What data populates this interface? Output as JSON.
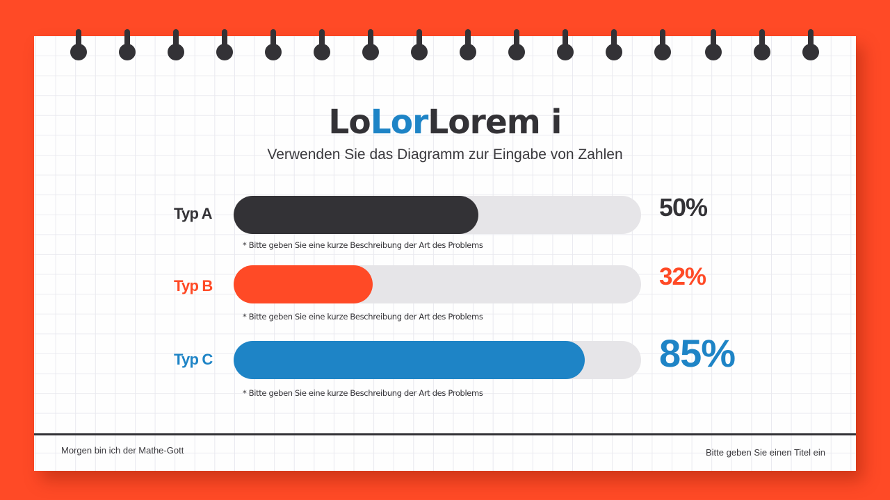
{
  "colors": {
    "background": "#ff4a26",
    "dark": "#333236",
    "orange": "#ff4a26",
    "blue": "#1e84c6",
    "track": "#e6e5e8"
  },
  "title": {
    "part1": "Lo",
    "part2": "Lor",
    "part3": "Lorem i"
  },
  "subtitle": "Verwenden Sie das Diagramm zur Eingabe von Zahlen",
  "rows": [
    {
      "label": "Typ A",
      "percent_label": "50%",
      "note": "* Bitte geben Sie eine kurze Beschreibung der Art des Problems"
    },
    {
      "label": "Typ B",
      "percent_label": "32%",
      "note": "* Bitte geben Sie eine kurze Beschreibung der Art des Problems"
    },
    {
      "label": "Typ C",
      "percent_label": "85%",
      "note": "* Bitte geben Sie eine kurze Beschreibung der Art des Problems"
    }
  ],
  "footer": {
    "left": "Morgen bin ich der Mathe-Gott",
    "right": "Bitte geben Sie einen Titel ein"
  },
  "chart_data": {
    "type": "bar",
    "orientation": "horizontal",
    "title": "LoLorLorem i",
    "subtitle": "Verwenden Sie das Diagramm zur Eingabe von Zahlen",
    "categories": [
      "Typ A",
      "Typ B",
      "Typ C"
    ],
    "values": [
      50,
      32,
      85
    ],
    "unit": "%",
    "xlim": [
      0,
      100
    ],
    "colors": [
      "#333236",
      "#ff4a26",
      "#1e84c6"
    ],
    "annotations": [
      "* Bitte geben Sie eine kurze Beschreibung der Art des Problems",
      "* Bitte geben Sie eine kurze Beschreibung der Art des Problems",
      "* Bitte geben Sie eine kurze Beschreibung der Art des Problems"
    ],
    "grid": false,
    "legend": "none"
  }
}
